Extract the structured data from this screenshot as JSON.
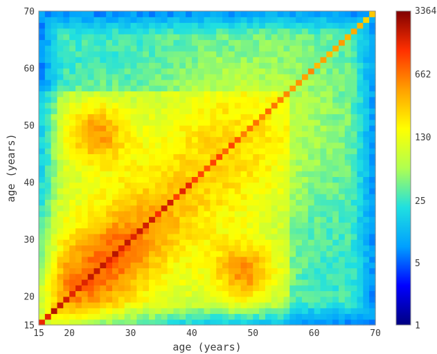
{
  "chart_data": {
    "type": "heatmap",
    "title": "",
    "xlabel": "age (years)",
    "ylabel": "age (years)",
    "xlim": [
      15,
      70
    ],
    "ylim": [
      15,
      70
    ],
    "x_ticks": [
      15,
      20,
      30,
      40,
      50,
      60,
      70
    ],
    "y_ticks": [
      15,
      20,
      30,
      40,
      50,
      60,
      70
    ],
    "bins_per_axis": 55,
    "color_scale": "log",
    "colormap": "jet",
    "colorbar": {
      "range": [
        1,
        3364
      ],
      "ticks": [
        "3364",
        "662",
        "130",
        "25",
        "5",
        "1"
      ]
    },
    "colormap_stops": [
      "#000080",
      "#0000ff",
      "#00a0ff",
      "#20e0e0",
      "#b0ff50",
      "#ffff00",
      "#ffa000",
      "#ff3000",
      "#800000"
    ],
    "structure": {
      "diagonal_peak": "red, strongest around ages 22-28, fading toward 70",
      "off_diagonal_blobs": [
        {
          "x_center": 24,
          "y_center": 49,
          "level": "orange"
        },
        {
          "x_center": 49,
          "y_center": 24,
          "level": "orange"
        }
      ],
      "background": "cyan/green at edges, yellow in central band"
    }
  }
}
